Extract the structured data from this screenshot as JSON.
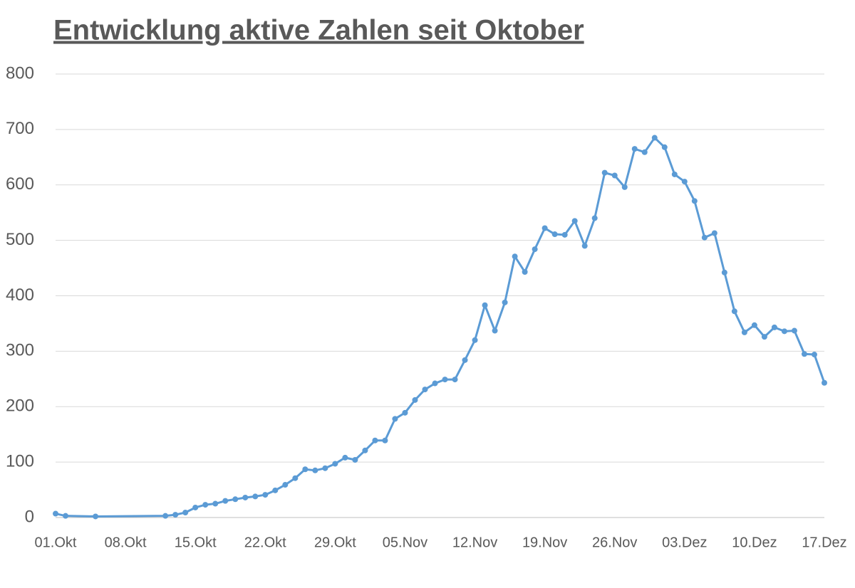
{
  "chart_data": {
    "type": "line",
    "title": "Entwicklung aktive Zahlen seit Oktober",
    "x": [
      "01.Okt",
      "02.Okt",
      "05.Okt",
      "12.Okt",
      "13.Okt",
      "14.Okt",
      "15.Okt",
      "16.Okt",
      "17.Okt",
      "18.Okt",
      "19.Okt",
      "20.Okt",
      "21.Okt",
      "22.Okt",
      "23.Okt",
      "24.Okt",
      "25.Okt",
      "26.Okt",
      "27.Okt",
      "28.Okt",
      "29.Okt",
      "30.Okt",
      "31.Okt",
      "01.Nov",
      "02.Nov",
      "03.Nov",
      "04.Nov",
      "05.Nov",
      "06.Nov",
      "07.Nov",
      "08.Nov",
      "09.Nov",
      "10.Nov",
      "11.Nov",
      "12.Nov",
      "13.Nov",
      "14.Nov",
      "15.Nov",
      "16.Nov",
      "17.Nov",
      "18.Nov",
      "19.Nov",
      "20.Nov",
      "21.Nov",
      "22.Nov",
      "23.Nov",
      "24.Nov",
      "25.Nov",
      "26.Nov",
      "27.Nov",
      "28.Nov",
      "29.Nov",
      "30.Nov",
      "01.Dez",
      "02.Dez",
      "03.Dez",
      "04.Dez",
      "05.Dez",
      "06.Dez",
      "07.Dez",
      "08.Dez",
      "09.Dez",
      "10.Dez",
      "11.Dez",
      "12.Dez",
      "13.Dez",
      "14.Dez",
      "15.Dez",
      "16.Dez",
      "17.Dez"
    ],
    "series": [
      {
        "color": "#5b9bd5",
        "values": [
          7,
          3,
          2,
          3,
          5,
          9,
          18,
          23,
          25,
          30,
          33,
          36,
          38,
          41,
          49,
          59,
          71,
          87,
          85,
          89,
          97,
          108,
          104,
          121,
          139,
          139,
          178,
          189,
          212,
          231,
          242,
          249,
          249,
          284,
          320,
          383,
          337,
          388,
          471,
          443,
          484,
          522,
          511,
          510,
          535,
          490,
          540,
          622,
          617,
          596,
          665,
          659,
          685,
          668,
          619,
          606,
          571,
          505,
          513,
          442,
          372,
          334,
          347,
          326,
          343,
          336,
          337,
          295,
          294,
          243
        ]
      }
    ],
    "xlim": [
      "01.Okt",
      "17.Dez"
    ],
    "xticks": [
      "01.Okt",
      "08.Okt",
      "15.Okt",
      "22.Okt",
      "29.Okt",
      "05.Nov",
      "12.Nov",
      "19.Nov",
      "26.Nov",
      "03.Dez",
      "10.Dez",
      "17.Dez"
    ],
    "ylim": [
      0,
      800
    ],
    "yticks": [
      0,
      100,
      200,
      300,
      400,
      500,
      600,
      700,
      800
    ],
    "grid": true
  }
}
